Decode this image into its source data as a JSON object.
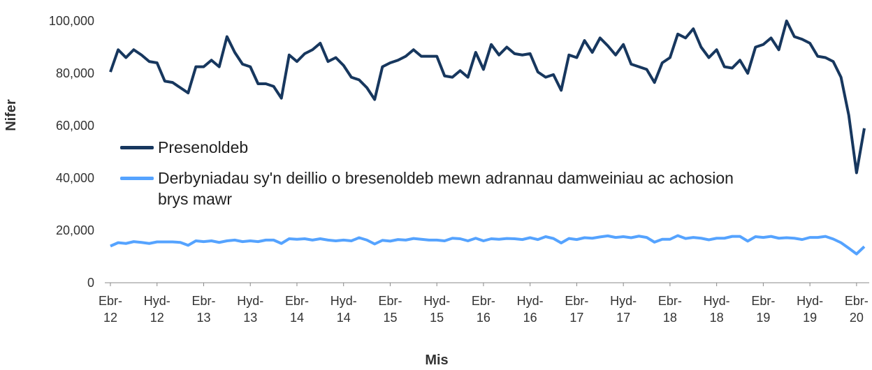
{
  "chart_data": {
    "type": "line",
    "x_label": "Mis",
    "y_label": "Nifer",
    "categories": [
      "Ebr-12",
      null,
      null,
      null,
      null,
      null,
      "Hyd-12",
      null,
      null,
      null,
      null,
      null,
      "Ebr-13",
      null,
      null,
      null,
      null,
      null,
      "Hyd-13",
      null,
      null,
      null,
      null,
      null,
      "Ebr-14",
      null,
      null,
      null,
      null,
      null,
      "Hyd-14",
      null,
      null,
      null,
      null,
      null,
      "Ebr-15",
      null,
      null,
      null,
      null,
      null,
      "Hyd-15",
      null,
      null,
      null,
      null,
      null,
      "Ebr-16",
      null,
      null,
      null,
      null,
      null,
      "Hyd-16",
      null,
      null,
      null,
      null,
      null,
      "Ebr-17",
      null,
      null,
      null,
      null,
      null,
      "Hyd-17",
      null,
      null,
      null,
      null,
      null,
      "Ebr-18",
      null,
      null,
      null,
      null,
      null,
      "Hyd-18",
      null,
      null,
      null,
      null,
      null,
      "Ebr-19",
      null,
      null,
      null,
      null,
      null,
      "Hyd-19",
      null,
      null,
      null,
      null,
      null,
      "Ebr-20",
      null
    ],
    "series": [
      {
        "name": "Presenoldeb",
        "color": "#17375e",
        "values": [
          80500,
          89000,
          86000,
          89000,
          87000,
          84500,
          84000,
          77000,
          76500,
          74500,
          72500,
          82500,
          82500,
          85000,
          82500,
          94000,
          88000,
          83500,
          82500,
          76000,
          76000,
          75000,
          70500,
          87000,
          84500,
          87500,
          89000,
          91500,
          84500,
          86000,
          83000,
          78500,
          77500,
          74500,
          70000,
          82500,
          84000,
          85000,
          86500,
          89000,
          86500,
          86500,
          86500,
          79000,
          78500,
          81000,
          78500,
          88000,
          81500,
          91000,
          87000,
          90000,
          87500,
          87000,
          87500,
          80500,
          78500,
          79500,
          73500,
          87000,
          86000,
          92500,
          88000,
          93500,
          90500,
          87000,
          91000,
          83500,
          82500,
          81500,
          76500,
          84000,
          86000,
          95000,
          93500,
          97000,
          90000,
          86000,
          89000,
          82500,
          82000,
          85000,
          80000,
          90000,
          91000,
          93500,
          89000,
          100000,
          94000,
          93000,
          91500,
          86500,
          86000,
          84500,
          78500,
          64000,
          42000,
          59000
        ]
      },
      {
        "name": "Derbyniadau sy'n deillio o bresenoldeb mewn adrannau damweiniau ac achosion brys mawr",
        "color": "#55a3ff",
        "values": [
          14000,
          15300,
          15000,
          15700,
          15400,
          15000,
          15600,
          15600,
          15600,
          15400,
          14300,
          16000,
          15700,
          16000,
          15400,
          16000,
          16300,
          15700,
          16000,
          15700,
          16300,
          16300,
          15000,
          16800,
          16600,
          16800,
          16300,
          16800,
          16300,
          16000,
          16300,
          16000,
          17200,
          16300,
          14800,
          16200,
          15900,
          16500,
          16300,
          16900,
          16600,
          16300,
          16300,
          16000,
          17000,
          16800,
          16000,
          17000,
          16000,
          16800,
          16600,
          16900,
          16800,
          16500,
          17200,
          16500,
          17600,
          16900,
          15200,
          16900,
          16500,
          17200,
          17000,
          17500,
          17900,
          17300,
          17600,
          17200,
          17800,
          17300,
          15500,
          16600,
          16600,
          18000,
          16900,
          17300,
          17000,
          16400,
          17000,
          17000,
          17700,
          17700,
          15900,
          17600,
          17300,
          17700,
          17000,
          17200,
          17000,
          16500,
          17300,
          17300,
          17700,
          16700,
          15300,
          13200,
          11000,
          13800
        ]
      }
    ],
    "ylim": [
      0,
      100000
    ],
    "yticks": [
      0,
      {
        "value": 20000,
        "label": "20,000"
      },
      {
        "value": 40000,
        "label": "40,000"
      },
      {
        "value": 60000,
        "label": "60,000"
      },
      {
        "value": 80000,
        "label": "80,000"
      },
      {
        "value": 100000,
        "label": "100,000"
      }
    ],
    "grid": false,
    "legend": "left"
  }
}
